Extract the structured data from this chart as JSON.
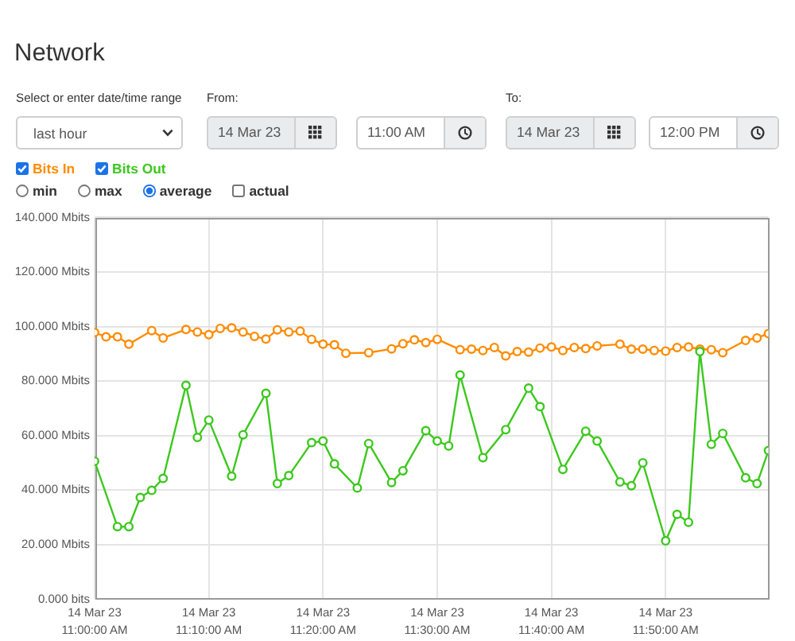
{
  "chart_data": {
    "type": "line",
    "title": "Network",
    "annotations": [
      "Select or enter date/time range",
      "From:",
      "To:",
      "last hour",
      "14 Mar 23",
      "11:00 AM",
      "14 Mar 23",
      "12:00 PM",
      "min",
      "max",
      "average",
      "actual"
    ],
    "series": [
      {
        "name": "Bits In",
        "color": "#ff8c00",
        "x": [
          "--03-14T11:00",
          "--03-14T11:01",
          "--03-14T11:02",
          "--03-14T11:03",
          "--03-14T11:05",
          "--03-14T11:06",
          "--03-14T11:08",
          "--03-14T11:09",
          "--03-14T11:10",
          "--03-14T11:11",
          "--03-14T11:12",
          "--03-14T11:13",
          "--03-14T11:14",
          "--03-14T11:15",
          "--03-14T11:16",
          "--03-14T11:17",
          "--03-14T11:18",
          "--03-14T11:19",
          "--03-14T11:20",
          "--03-14T11:21",
          "--03-14T11:22",
          "--03-14T11:24",
          "--03-14T11:26",
          "--03-14T11:27",
          "--03-14T11:28",
          "--03-14T11:29",
          "--03-14T11:30",
          "--03-14T11:32",
          "--03-14T11:33",
          "--03-14T11:34",
          "--03-14T11:35",
          "--03-14T11:36",
          "--03-14T11:37",
          "--03-14T11:38",
          "--03-14T11:39",
          "--03-14T11:40",
          "--03-14T11:41",
          "--03-14T11:42",
          "--03-14T11:43",
          "--03-14T11:44",
          "--03-14T11:46",
          "--03-14T11:47",
          "--03-14T11:48",
          "--03-14T11:49",
          "--03-14T11:50",
          "--03-14T11:51",
          "--03-14T11:52",
          "--03-14T11:53",
          "--03-14T11:54",
          "--03-14T11:55",
          "--03-14T11:57",
          "--03-14T11:58",
          "--03-14T11:59"
        ],
        "values": [
          97.8,
          96.2,
          96.2,
          93.5,
          98.5,
          95.8,
          98.9,
          98.0,
          97.0,
          99.3,
          99.5,
          98.0,
          96.4,
          95.4,
          98.8,
          98.0,
          98.3,
          95.3,
          93.5,
          93.3,
          90.2,
          90.4,
          91.8,
          93.7,
          95.1,
          94.1,
          95.3,
          91.5,
          91.7,
          91.2,
          92.3,
          89.2,
          90.8,
          90.6,
          92.1,
          92.5,
          91.2,
          92.3,
          91.9,
          92.9,
          93.5,
          91.7,
          91.7,
          91.2,
          91.0,
          92.3,
          92.5,
          91.7,
          91.5,
          90.4,
          94.9,
          95.8,
          97.4
        ]
      },
      {
        "name": "Bits Out",
        "color": "#3cc81e",
        "x": [
          "--03-14T11:00",
          "--03-14T11:02",
          "--03-14T11:03",
          "--03-14T11:04",
          "--03-14T11:05",
          "--03-14T11:06",
          "--03-14T11:08",
          "--03-14T11:09",
          "--03-14T11:10",
          "--03-14T11:12",
          "--03-14T11:13",
          "--03-14T11:15",
          "--03-14T11:16",
          "--03-14T11:17",
          "--03-14T11:19",
          "--03-14T11:20",
          "--03-14T11:21",
          "--03-14T11:23",
          "--03-14T11:24",
          "--03-14T11:26",
          "--03-14T11:27",
          "--03-14T11:29",
          "--03-14T11:30",
          "--03-14T11:31",
          "--03-14T11:32",
          "--03-14T11:34",
          "--03-14T11:36",
          "--03-14T11:38",
          "--03-14T11:39",
          "--03-14T11:41",
          "--03-14T11:43",
          "--03-14T11:44",
          "--03-14T11:46",
          "--03-14T11:47",
          "--03-14T11:48",
          "--03-14T11:50",
          "--03-14T11:51",
          "--03-14T11:52",
          "--03-14T11:53",
          "--03-14T11:54",
          "--03-14T11:55",
          "--03-14T11:57",
          "--03-14T11:58",
          "--03-14T11:59"
        ],
        "values": [
          50.6,
          26.6,
          26.6,
          37.3,
          39.9,
          44.3,
          78.4,
          59.3,
          65.7,
          45.1,
          60.3,
          75.5,
          42.4,
          45.3,
          57.4,
          58.0,
          49.6,
          40.8,
          57.1,
          42.8,
          47.1,
          61.8,
          58.0,
          56.2,
          82.2,
          51.9,
          62.2,
          77.4,
          70.6,
          47.6,
          61.6,
          58.0,
          43.0,
          41.6,
          50.0,
          21.4,
          31.1,
          28.2,
          90.8,
          56.8,
          60.8,
          44.5,
          42.4,
          54.5
        ]
      }
    ],
    "xlim": [
      "--03-14T11:00",
      "--03-14T11:59"
    ],
    "xticks": [
      {
        "value": "--03-14T11:00",
        "label": "14 Mar 23\n11:00:00 AM"
      },
      {
        "value": "--03-14T11:10",
        "label": "14 Mar 23\n11:10:00 AM"
      },
      {
        "value": "--03-14T11:20",
        "label": "14 Mar 23\n11:20:00 AM"
      },
      {
        "value": "--03-14T11:30",
        "label": "14 Mar 23\n11:30:00 AM"
      },
      {
        "value": "--03-14T11:40",
        "label": "14 Mar 23\n11:40:00 AM"
      },
      {
        "value": "--03-14T11:50",
        "label": "14 Mar 23\n11:50:00 AM"
      }
    ],
    "ylim": [
      0,
      140
    ],
    "yticks": [
      {
        "value": 0,
        "label": "0.000 bits"
      },
      {
        "value": 20,
        "label": "20.000 Mbits"
      },
      {
        "value": 40,
        "label": "40.000 Mbits"
      },
      {
        "value": 60,
        "label": "60.000 Mbits"
      },
      {
        "value": 80,
        "label": "80.000 Mbits"
      },
      {
        "value": 100,
        "label": "100.000 Mbits"
      },
      {
        "value": 120,
        "label": "120.000 Mbits"
      },
      {
        "value": 140,
        "label": "140.000 Mbits"
      }
    ],
    "grid": true,
    "legend": "top left",
    "marker": "circle"
  }
}
